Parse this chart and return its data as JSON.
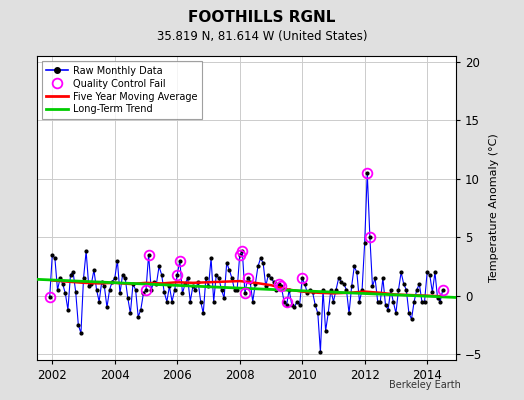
{
  "title": "FOOTHILLS RGNL",
  "subtitle": "35.819 N, 81.614 W (United States)",
  "ylabel": "Temperature Anomaly (°C)",
  "watermark": "Berkeley Earth",
  "ylim": [
    -5.5,
    20.5
  ],
  "yticks": [
    -5,
    0,
    5,
    10,
    15,
    20
  ],
  "xlim": [
    2001.5,
    2014.92
  ],
  "xticks": [
    2002,
    2004,
    2006,
    2008,
    2010,
    2012,
    2014
  ],
  "bg_color": "#e0e0e0",
  "plot_bg_color": "#ffffff",
  "grid_color": "#cccccc",
  "raw_line_color": "#0000ff",
  "raw_marker_color": "#000000",
  "qc_color": "#ff00ff",
  "moving_avg_color": "#ff0000",
  "trend_color": "#00cc00",
  "raw_data_times": [
    2001.917,
    2002.0,
    2002.083,
    2002.167,
    2002.25,
    2002.333,
    2002.417,
    2002.5,
    2002.583,
    2002.667,
    2002.75,
    2002.833,
    2002.917,
    2003.0,
    2003.083,
    2003.167,
    2003.25,
    2003.333,
    2003.417,
    2003.5,
    2003.583,
    2003.667,
    2003.75,
    2003.833,
    2003.917,
    2004.0,
    2004.083,
    2004.167,
    2004.25,
    2004.333,
    2004.417,
    2004.5,
    2004.583,
    2004.667,
    2004.75,
    2004.833,
    2004.917,
    2005.0,
    2005.083,
    2005.167,
    2005.25,
    2005.333,
    2005.417,
    2005.5,
    2005.583,
    2005.667,
    2005.75,
    2005.833,
    2005.917,
    2006.0,
    2006.083,
    2006.167,
    2006.25,
    2006.333,
    2006.417,
    2006.5,
    2006.583,
    2006.667,
    2006.75,
    2006.833,
    2006.917,
    2007.0,
    2007.083,
    2007.167,
    2007.25,
    2007.333,
    2007.417,
    2007.5,
    2007.583,
    2007.667,
    2007.75,
    2007.833,
    2007.917,
    2008.0,
    2008.083,
    2008.167,
    2008.25,
    2008.333,
    2008.417,
    2008.5,
    2008.583,
    2008.667,
    2008.75,
    2008.833,
    2008.917,
    2009.0,
    2009.083,
    2009.167,
    2009.25,
    2009.333,
    2009.417,
    2009.5,
    2009.583,
    2009.667,
    2009.75,
    2009.833,
    2009.917,
    2010.0,
    2010.083,
    2010.167,
    2010.25,
    2010.333,
    2010.417,
    2010.5,
    2010.583,
    2010.667,
    2010.75,
    2010.833,
    2010.917,
    2011.0,
    2011.083,
    2011.167,
    2011.25,
    2011.333,
    2011.417,
    2011.5,
    2011.583,
    2011.667,
    2011.75,
    2011.833,
    2011.917,
    2012.0,
    2012.083,
    2012.167,
    2012.25,
    2012.333,
    2012.417,
    2012.5,
    2012.583,
    2012.667,
    2012.75,
    2012.833,
    2012.917,
    2013.0,
    2013.083,
    2013.167,
    2013.25,
    2013.333,
    2013.417,
    2013.5,
    2013.583,
    2013.667,
    2013.75,
    2013.833,
    2013.917,
    2014.0,
    2014.083,
    2014.167,
    2014.25,
    2014.333,
    2014.417,
    2014.5
  ],
  "raw_data_values": [
    -0.1,
    3.5,
    3.2,
    0.5,
    1.5,
    1.0,
    0.2,
    -1.2,
    1.8,
    2.0,
    0.3,
    -2.5,
    -3.2,
    1.5,
    3.8,
    0.8,
    1.0,
    2.2,
    0.5,
    -0.5,
    1.2,
    0.8,
    -1.0,
    0.5,
    1.2,
    1.5,
    3.0,
    0.2,
    1.8,
    1.5,
    -0.2,
    -1.5,
    1.0,
    0.5,
    -1.8,
    -1.2,
    0.2,
    0.5,
    3.5,
    0.5,
    1.2,
    1.0,
    2.5,
    1.8,
    0.3,
    -0.5,
    0.8,
    -0.5,
    0.5,
    1.8,
    3.0,
    0.2,
    1.0,
    1.5,
    -0.5,
    0.8,
    0.5,
    1.2,
    -0.5,
    -1.5,
    1.5,
    0.8,
    3.2,
    -0.5,
    1.8,
    1.5,
    0.5,
    -0.2,
    2.8,
    2.2,
    1.5,
    0.5,
    0.5,
    3.5,
    3.8,
    0.2,
    1.5,
    1.2,
    -0.5,
    1.0,
    2.5,
    3.2,
    2.8,
    0.8,
    1.8,
    1.5,
    1.2,
    0.5,
    1.0,
    0.8,
    -0.5,
    -0.8,
    0.5,
    -0.8,
    -1.0,
    -0.5,
    -0.8,
    1.5,
    1.0,
    0.2,
    0.5,
    0.3,
    -0.8,
    -1.5,
    -4.8,
    0.5,
    -3.0,
    -1.5,
    0.5,
    -0.5,
    0.5,
    1.5,
    1.2,
    1.0,
    0.5,
    -1.5,
    0.8,
    2.5,
    2.0,
    -0.5,
    0.5,
    4.5,
    10.5,
    5.0,
    0.8,
    1.5,
    -0.5,
    -0.5,
    1.5,
    -0.8,
    -1.2,
    0.5,
    -0.5,
    -1.5,
    0.5,
    2.0,
    1.0,
    0.5,
    -1.5,
    -2.0,
    -0.5,
    0.5,
    1.0,
    -0.5,
    -0.5,
    2.0,
    1.8,
    0.3,
    2.0,
    -0.2,
    -0.5,
    0.5
  ],
  "qc_fail_times": [
    2001.917,
    2005.0,
    2005.083,
    2006.0,
    2006.083,
    2008.0,
    2008.083,
    2008.167,
    2008.25,
    2009.25,
    2009.333,
    2009.5,
    2010.0,
    2012.083,
    2012.167,
    2014.5
  ],
  "qc_fail_values": [
    -0.1,
    0.5,
    3.5,
    1.8,
    3.0,
    3.5,
    3.8,
    0.2,
    1.5,
    1.0,
    0.8,
    -0.5,
    1.5,
    10.5,
    5.0,
    0.5
  ],
  "moving_avg_times": [
    2002.0,
    2002.5,
    2003.0,
    2003.5,
    2004.0,
    2004.5,
    2005.0,
    2005.5,
    2006.0,
    2006.5,
    2007.0,
    2007.5,
    2008.0,
    2008.5,
    2009.0,
    2009.5,
    2010.0,
    2010.5,
    2011.0,
    2011.5,
    2012.0,
    2012.5,
    2013.0,
    2013.5,
    2014.0,
    2014.5
  ],
  "moving_avg_values": [
    1.3,
    1.2,
    1.1,
    1.05,
    1.1,
    1.0,
    1.1,
    1.05,
    1.15,
    1.1,
    1.15,
    1.2,
    1.25,
    1.1,
    0.9,
    0.55,
    0.35,
    0.25,
    0.2,
    0.25,
    0.35,
    0.25,
    0.1,
    0.05,
    0.0,
    -0.05
  ],
  "trend_times": [
    2001.5,
    2014.92
  ],
  "trend_values": [
    1.4,
    -0.15
  ]
}
